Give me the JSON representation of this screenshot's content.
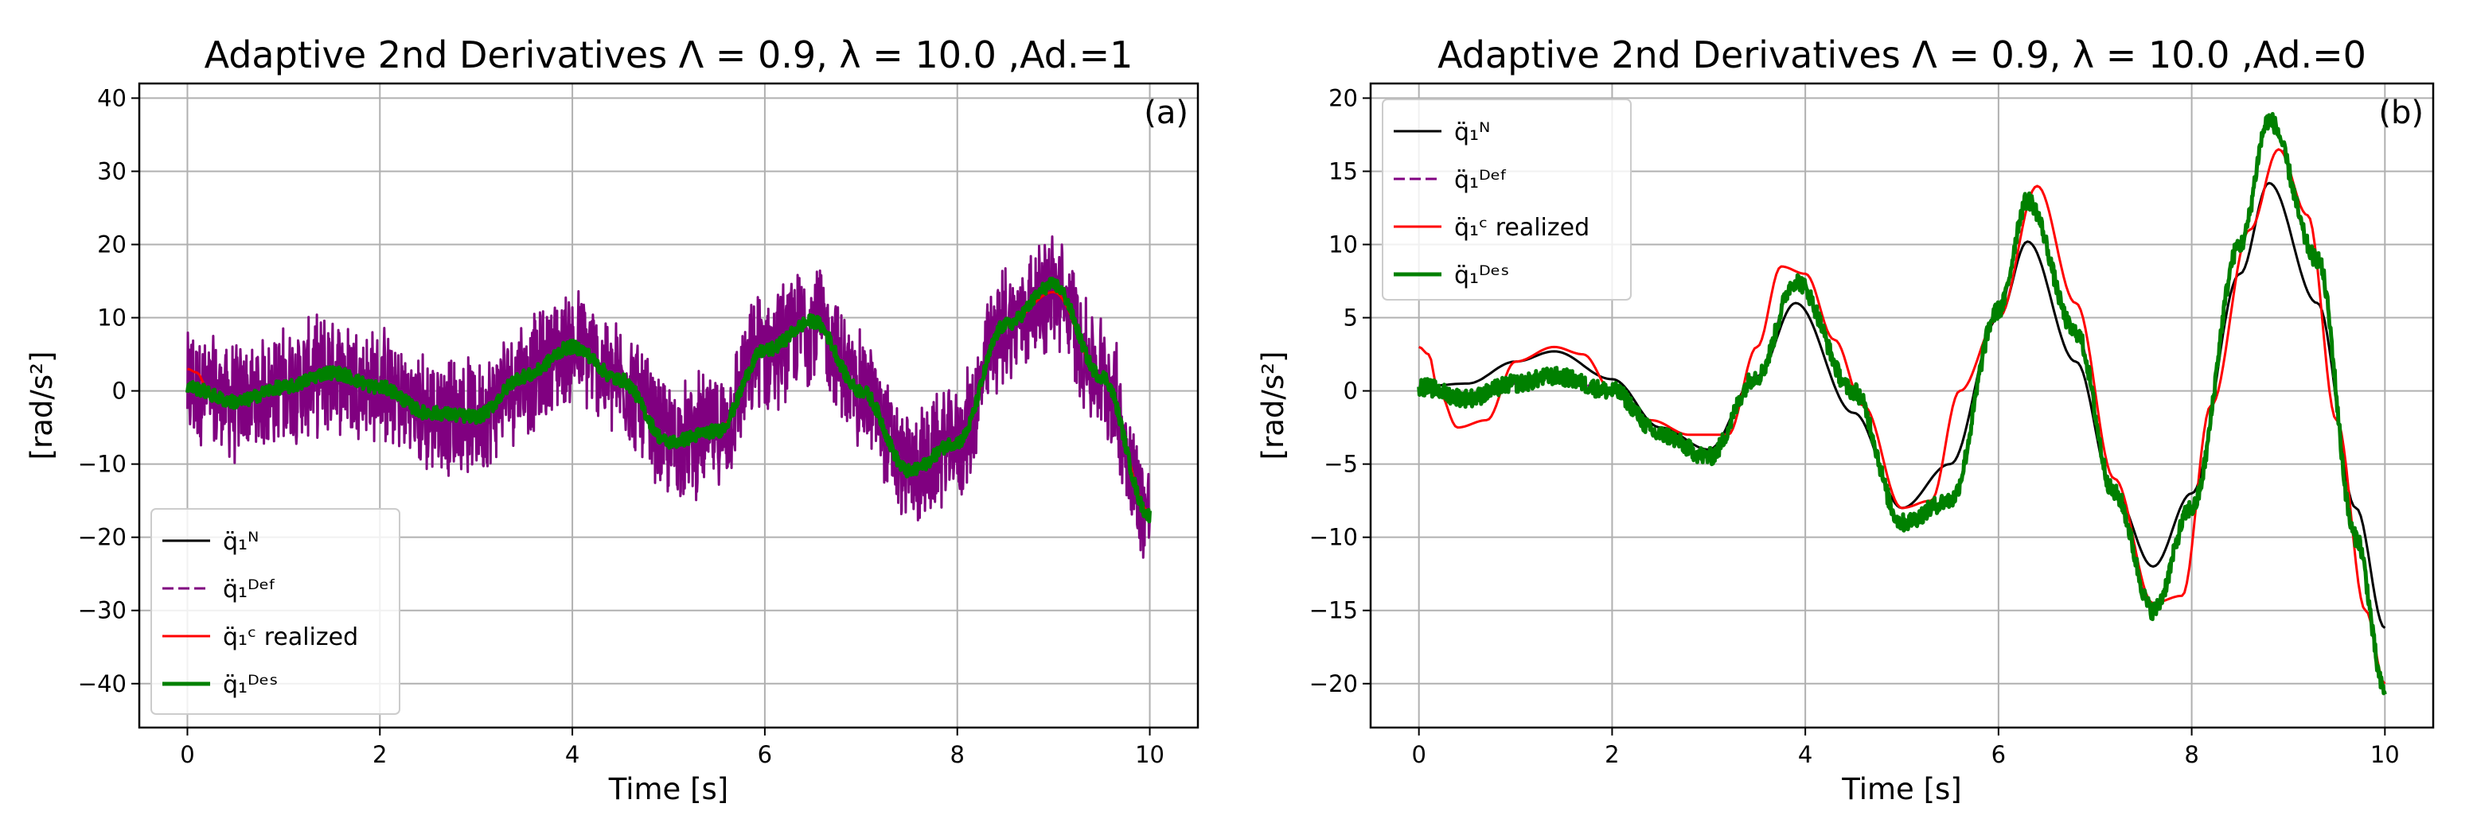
{
  "chart_data": [
    {
      "type": "line",
      "title": "Adaptive 2nd Derivatives Λ = 0.9, λ = 10.0 ,Ad.=1",
      "panel_label": "(a)",
      "xlabel": "Time [s]",
      "ylabel": "[rad/s²]",
      "xlim": [
        -0.5,
        10.5
      ],
      "ylim": [
        -46,
        42
      ],
      "xticks": [
        0,
        2,
        4,
        6,
        8,
        10
      ],
      "yticks": [
        -40,
        -30,
        -20,
        -10,
        0,
        10,
        20,
        30,
        40
      ],
      "grid": true,
      "legend_position": "lower-left",
      "noise": {
        "Def": 9.0,
        "Des": 0.9
      },
      "series": [
        {
          "key": "N",
          "name": "q̈₁ᴺ",
          "color": "#000000",
          "style": "solid",
          "x": [
            0,
            0.5,
            1,
            1.5,
            2,
            2.5,
            3,
            3.5,
            4,
            4.5,
            5,
            5.5,
            6,
            6.5,
            7,
            7.5,
            8,
            8.5,
            9,
            9.5,
            10
          ],
          "y": [
            0.5,
            -1.5,
            0.5,
            2.5,
            0.5,
            -3.0,
            -3.5,
            2.0,
            6.0,
            1.5,
            -7.0,
            -5.5,
            5.5,
            9.5,
            0.0,
            -11.0,
            -7.0,
            9.0,
            13.5,
            2.0,
            -16.5
          ]
        },
        {
          "key": "Def",
          "name": "q̈₁ᴰᵉᶠ",
          "color": "#800080",
          "style": "dashed",
          "x": [
            0,
            0.5,
            1,
            1.5,
            2,
            2.5,
            3,
            3.5,
            4,
            4.5,
            5,
            5.5,
            6,
            6.5,
            7,
            7.5,
            8,
            8.5,
            9,
            9.5,
            10
          ],
          "y": [
            0.5,
            -1.5,
            0.5,
            2.5,
            0.5,
            -3.0,
            -3.5,
            2.0,
            6.0,
            1.5,
            -7.0,
            -5.5,
            5.5,
            9.5,
            0.0,
            -11.0,
            -7.0,
            9.0,
            13.5,
            2.0,
            -16.5
          ]
        },
        {
          "key": "C",
          "name": "q̈₁ᶜ realized",
          "color": "#ff0000",
          "style": "solid",
          "x": [
            0,
            0.1,
            0.2,
            0.3,
            0.5,
            1,
            1.5,
            2,
            2.5,
            3,
            3.5,
            4,
            4.5,
            5,
            5.5,
            6,
            6.5,
            7,
            7.5,
            8,
            8.5,
            9,
            9.5,
            10
          ],
          "y": [
            3.0,
            2.5,
            0.5,
            -1.5,
            -1.5,
            0.5,
            2.5,
            0.5,
            -3.0,
            -3.5,
            2.0,
            6.0,
            1.5,
            -7.0,
            -5.5,
            5.5,
            9.5,
            0.0,
            -11.0,
            -7.0,
            9.0,
            13.5,
            2.0,
            -16.5
          ]
        },
        {
          "key": "Des",
          "name": "q̈₁ᴰᵉˢ",
          "color": "#008000",
          "style": "solid",
          "x": [
            0,
            0.5,
            1,
            1.5,
            2,
            2.5,
            3,
            3.5,
            4,
            4.5,
            5,
            5.5,
            6,
            6.5,
            7,
            7.5,
            8,
            8.5,
            9,
            9.5,
            10
          ],
          "y": [
            0.5,
            -1.5,
            0.5,
            2.5,
            0.5,
            -3.0,
            -3.5,
            2.0,
            6.0,
            1.5,
            -7.0,
            -5.5,
            5.5,
            9.5,
            0.0,
            -11.0,
            -7.0,
            9.0,
            14.5,
            2.0,
            -17.0
          ]
        }
      ]
    },
    {
      "type": "line",
      "title": "Adaptive 2nd Derivatives Λ = 0.9, λ = 10.0 ,Ad.=0",
      "panel_label": "(b)",
      "xlabel": "Time [s]",
      "ylabel": "[rad/s²]",
      "xlim": [
        -0.5,
        10.5
      ],
      "ylim": [
        -23,
        21
      ],
      "xticks": [
        0,
        2,
        4,
        6,
        8,
        10
      ],
      "yticks": [
        -20,
        -15,
        -10,
        -5,
        0,
        5,
        10,
        15,
        20
      ],
      "grid": true,
      "legend_position": "upper-left",
      "noise": {
        "Def": 0.0,
        "Des": 0.6
      },
      "series": [
        {
          "key": "N",
          "name": "q̈₁ᴺ",
          "color": "#000000",
          "style": "solid",
          "x": [
            0,
            0.5,
            1,
            1.4,
            2,
            2.5,
            3,
            3.5,
            3.9,
            4.5,
            5,
            5.5,
            6,
            6.3,
            6.8,
            7.2,
            7.6,
            8,
            8.5,
            8.8,
            9.3,
            9.7,
            10
          ],
          "y": [
            0.3,
            0.5,
            2.0,
            2.7,
            0.8,
            -2.5,
            -4.0,
            1.0,
            6.0,
            -1.5,
            -8.0,
            -5.0,
            5.0,
            10.2,
            2.0,
            -7.0,
            -12.0,
            -7.0,
            8.0,
            14.2,
            6.0,
            -8.0,
            -16.2
          ]
        },
        {
          "key": "Def",
          "name": "q̈₁ᴰᵉᶠ",
          "color": "#800080",
          "style": "dashed",
          "x": [
            0,
            0.5,
            1,
            1.4,
            2,
            2.5,
            3,
            3.5,
            3.9,
            4.5,
            5,
            5.5,
            6,
            6.3,
            6.8,
            7.2,
            7.6,
            8,
            8.5,
            8.8,
            9.3,
            9.7,
            10
          ],
          "y": [
            0.3,
            -0.5,
            0.5,
            1.0,
            0.0,
            -3.0,
            -4.5,
            1.0,
            7.5,
            0.0,
            -9.0,
            -7.5,
            5.5,
            13.0,
            4.0,
            -7.0,
            -15.0,
            -8.0,
            10.0,
            18.5,
            9.0,
            -10.0,
            -20.5
          ]
        },
        {
          "key": "C",
          "name": "q̈₁ᶜ realized",
          "color": "#ff0000",
          "style": "solid",
          "x": [
            0,
            0.1,
            0.2,
            0.4,
            0.7,
            1,
            1.4,
            1.7,
            2,
            2.4,
            2.8,
            3.2,
            3.5,
            3.75,
            4,
            4.3,
            4.6,
            5,
            5.3,
            5.6,
            6,
            6.4,
            6.8,
            7.2,
            7.6,
            7.9,
            8.2,
            8.6,
            8.9,
            9.2,
            9.5,
            9.8,
            10
          ],
          "y": [
            3.0,
            2.5,
            0.0,
            -2.5,
            -2.0,
            2.0,
            3.0,
            2.5,
            0.0,
            -2.0,
            -3.0,
            -3.0,
            3.0,
            8.5,
            8.0,
            3.5,
            -1.0,
            -8.0,
            -7.5,
            0.0,
            5.0,
            14.0,
            6.0,
            -6.0,
            -14.5,
            -14.0,
            -1.0,
            11.0,
            16.5,
            12.0,
            -2.0,
            -15.0,
            -20.0
          ]
        },
        {
          "key": "Des",
          "name": "q̈₁ᴰᵉˢ",
          "color": "#008000",
          "style": "solid",
          "x": [
            0,
            0.5,
            1,
            1.4,
            2,
            2.5,
            3,
            3.5,
            3.9,
            4.5,
            5,
            5.5,
            6,
            6.3,
            6.8,
            7.2,
            7.6,
            8,
            8.5,
            8.8,
            9.3,
            9.7,
            10
          ],
          "y": [
            0.3,
            -0.5,
            0.5,
            1.0,
            0.0,
            -3.0,
            -4.5,
            1.0,
            7.5,
            0.0,
            -9.0,
            -7.5,
            5.5,
            13.0,
            4.0,
            -7.0,
            -15.0,
            -8.0,
            10.0,
            18.5,
            9.0,
            -10.0,
            -20.5
          ]
        }
      ]
    }
  ]
}
